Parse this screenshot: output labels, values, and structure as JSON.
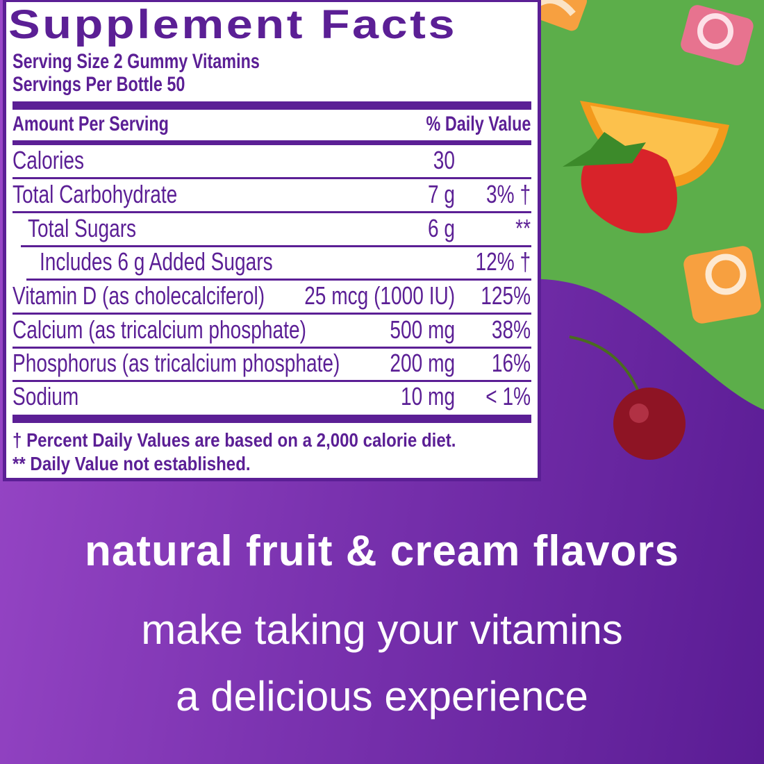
{
  "colors": {
    "brand_purple": "#5b1f95",
    "green": "#5cae4a",
    "white": "#ffffff"
  },
  "label": {
    "title": "Supplement Facts",
    "serving_size": "Serving Size 2 Gummy Vitamins",
    "servings_per": "Servings Per Bottle 50",
    "header_amount": "Amount Per Serving",
    "header_dv": "% Daily Value",
    "rows": [
      {
        "name": "Calories",
        "amount": "30",
        "dv": ""
      },
      {
        "name": "Total Carbohydrate",
        "amount": "7 g",
        "dv": "3% †"
      },
      {
        "name": "Total Sugars",
        "amount": "6 g",
        "dv": "**"
      },
      {
        "name": "Includes 6 g Added Sugars",
        "amount": "",
        "dv": "12% †"
      },
      {
        "name": "Vitamin D (as cholecalciferol)",
        "amount": "25 mcg (1000 IU)",
        "dv": "125%"
      },
      {
        "name": "Calcium (as tricalcium phosphate)",
        "amount": "500 mg",
        "dv": "38%"
      },
      {
        "name": "Phosphorus (as tricalcium phosphate)",
        "amount": "200 mg",
        "dv": "16%"
      },
      {
        "name": "Sodium",
        "amount": "10 mg",
        "dv": "< 1%"
      }
    ],
    "footnote1": "† Percent Daily Values are based on a 2,000 calorie diet.",
    "footnote2": "** Daily Value not established."
  },
  "tagline": {
    "line1": "natural fruit & cream flavors",
    "line2": "make taking your vitamins",
    "line3": "a delicious experience"
  },
  "images": [
    "orange-cream-candy",
    "pink-swirl-candy",
    "orange-slice",
    "strawberry",
    "orange-swirl-candy",
    "cherry"
  ]
}
